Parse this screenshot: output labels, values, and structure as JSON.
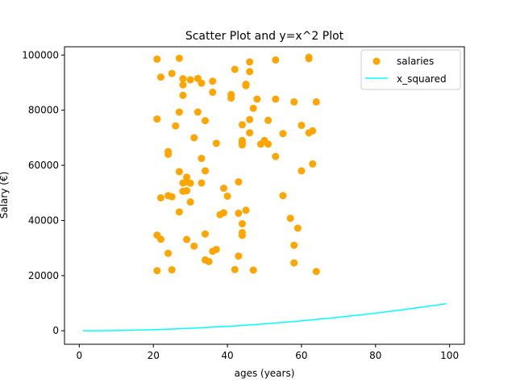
{
  "chart_data": {
    "type": "scatter",
    "title": "Scatter Plot and y=x^2 Plot",
    "xlabel": "ages (years)",
    "ylabel": "Salary (€)",
    "xlim": [
      -4,
      104
    ],
    "ylim": [
      -4900,
      103000
    ],
    "x_ticks": [
      0,
      20,
      40,
      60,
      80,
      100
    ],
    "y_ticks": [
      0,
      20000,
      40000,
      60000,
      80000,
      100000
    ],
    "x_tick_labels": [
      "0",
      "20",
      "40",
      "60",
      "80",
      "100"
    ],
    "y_tick_labels": [
      "0",
      "20000",
      "40000",
      "60000",
      "80000",
      "100000"
    ],
    "grid": false,
    "legend_position": "top-right",
    "series": [
      {
        "name": "salaries",
        "kind": "scatter",
        "color": "#FFA500",
        "points": [
          [
            21,
            98500
          ],
          [
            27,
            98800
          ],
          [
            22,
            92000
          ],
          [
            25,
            93300
          ],
          [
            28,
            91400
          ],
          [
            30,
            91000
          ],
          [
            32,
            91500
          ],
          [
            33,
            89800
          ],
          [
            28,
            89200
          ],
          [
            36,
            90500
          ],
          [
            46,
            97500
          ],
          [
            53,
            98200
          ],
          [
            62,
            99200
          ],
          [
            62,
            98700
          ],
          [
            42,
            94800
          ],
          [
            46,
            94000
          ],
          [
            45,
            89400
          ],
          [
            45,
            88900
          ],
          [
            36,
            86500
          ],
          [
            28,
            85400
          ],
          [
            41,
            85700
          ],
          [
            41,
            84400
          ],
          [
            48,
            84000
          ],
          [
            53,
            84000
          ],
          [
            58,
            83000
          ],
          [
            64,
            83000
          ],
          [
            47,
            80700
          ],
          [
            27,
            79300
          ],
          [
            32,
            79300
          ],
          [
            21,
            76800
          ],
          [
            34,
            76200
          ],
          [
            44,
            74700
          ],
          [
            46,
            76600
          ],
          [
            51,
            76300
          ],
          [
            26,
            74300
          ],
          [
            60,
            74500
          ],
          [
            63,
            72500
          ],
          [
            62,
            71800
          ],
          [
            46,
            71800
          ],
          [
            55,
            71500
          ],
          [
            31,
            70000
          ],
          [
            44,
            69000
          ],
          [
            44,
            68100
          ],
          [
            44,
            67400
          ],
          [
            37,
            68000
          ],
          [
            49,
            67700
          ],
          [
            50,
            69000
          ],
          [
            51,
            67700
          ],
          [
            24,
            65000
          ],
          [
            24,
            64000
          ],
          [
            53,
            63200
          ],
          [
            33,
            62500
          ],
          [
            63,
            60500
          ],
          [
            60,
            58000
          ],
          [
            27,
            57700
          ],
          [
            34,
            58000
          ],
          [
            29,
            55700
          ],
          [
            28,
            53600
          ],
          [
            29,
            54000
          ],
          [
            30,
            53500
          ],
          [
            33,
            53600
          ],
          [
            43,
            54000
          ],
          [
            39,
            51700
          ],
          [
            28,
            50600
          ],
          [
            29,
            50800
          ],
          [
            22,
            48200
          ],
          [
            24,
            49000
          ],
          [
            25,
            48600
          ],
          [
            40,
            48800
          ],
          [
            55,
            49000
          ],
          [
            30,
            46700
          ],
          [
            27,
            43100
          ],
          [
            38,
            42100
          ],
          [
            39,
            42800
          ],
          [
            43,
            42600
          ],
          [
            45,
            43700
          ],
          [
            57,
            40800
          ],
          [
            44,
            38800
          ],
          [
            59,
            37200
          ],
          [
            44,
            35600
          ],
          [
            44,
            34600
          ],
          [
            21,
            34700
          ],
          [
            22,
            33200
          ],
          [
            29,
            33100
          ],
          [
            34,
            35100
          ],
          [
            58,
            31000
          ],
          [
            31,
            30700
          ],
          [
            36,
            28800
          ],
          [
            37,
            29500
          ],
          [
            24,
            28100
          ],
          [
            43,
            27100
          ],
          [
            34,
            25700
          ],
          [
            35,
            25100
          ],
          [
            58,
            24600
          ],
          [
            21,
            21800
          ],
          [
            25,
            22100
          ],
          [
            42,
            22200
          ],
          [
            47,
            22000
          ],
          [
            64,
            21500
          ]
        ]
      },
      {
        "name": "x_squared",
        "kind": "line",
        "color": "#00FFFF",
        "function": "x^2",
        "x_range": [
          1,
          99
        ]
      }
    ]
  }
}
